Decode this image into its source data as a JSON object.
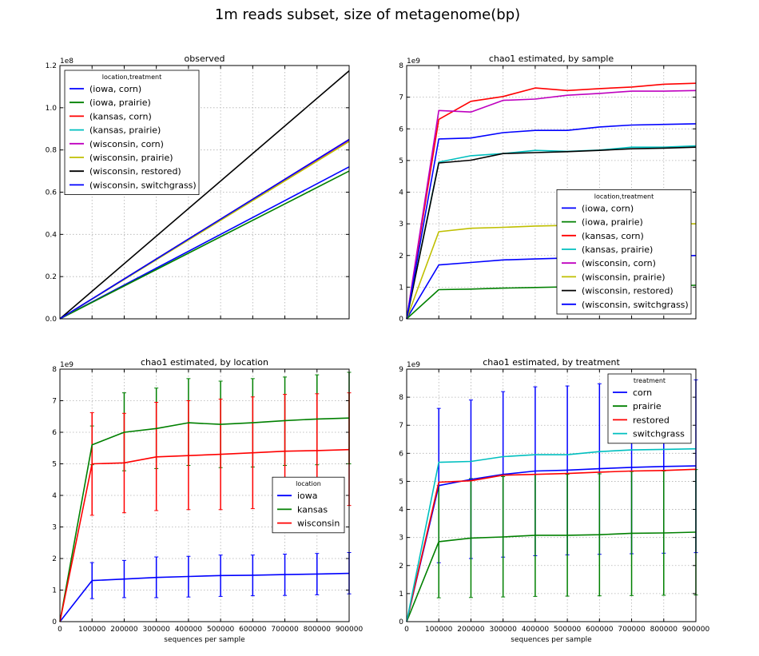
{
  "figure": {
    "suptitle": "1m reads subset, size of metagenome(bp)"
  },
  "colors": {
    "blue": "#0000ff",
    "green": "#008000",
    "red": "#ff0000",
    "cyan": "#00bfbf",
    "magenta": "#bf00bf",
    "yellow": "#bfbf00",
    "black": "#000000"
  },
  "chart_data": [
    {
      "id": "observed",
      "type": "line",
      "title": "observed",
      "xlabel": "",
      "ylabel": "",
      "xlim": [
        0,
        900000
      ],
      "ylim": [
        0,
        1.2
      ],
      "multiplier_label": "1e8",
      "xticks": [
        0,
        100000,
        200000,
        300000,
        400000,
        500000,
        600000,
        700000,
        800000,
        900000
      ],
      "xtick_labels": [],
      "yticks": [
        0,
        0.2,
        0.4,
        0.6,
        0.8,
        1.0,
        1.2
      ],
      "ytick_labels": [
        "0.0",
        "0.2",
        "0.4",
        "0.6",
        "0.8",
        "1.0",
        "1.2"
      ],
      "grid": true,
      "legend": {
        "title": "location,treatment",
        "position": "upper-left"
      },
      "x": [
        0,
        900000
      ],
      "series": [
        {
          "name": "(iowa, corn)",
          "color": "#0000ff",
          "values": [
            0,
            0.72
          ]
        },
        {
          "name": "(iowa, prairie)",
          "color": "#008000",
          "values": [
            0,
            0.7
          ]
        },
        {
          "name": "(kansas, corn)",
          "color": "#ff0000",
          "values": [
            0,
            0.85
          ]
        },
        {
          "name": "(kansas, prairie)",
          "color": "#00bfbf",
          "values": [
            0,
            0.845
          ]
        },
        {
          "name": "(wisconsin, corn)",
          "color": "#bf00bf",
          "values": [
            0,
            0.845
          ]
        },
        {
          "name": "(wisconsin, prairie)",
          "color": "#bfbf00",
          "values": [
            0,
            0.84
          ]
        },
        {
          "name": "(wisconsin, restored)",
          "color": "#000000",
          "values": [
            0,
            1.175
          ]
        },
        {
          "name": "(wisconsin, switchgrass)",
          "color": "#0000ff",
          "values": [
            0,
            0.85
          ]
        }
      ]
    },
    {
      "id": "by-sample",
      "type": "line",
      "title": "chao1 estimated, by sample",
      "xlabel": "",
      "ylabel": "",
      "xlim": [
        0,
        900000
      ],
      "ylim": [
        0,
        8
      ],
      "multiplier_label": "1e9",
      "xticks": [
        0,
        100000,
        200000,
        300000,
        400000,
        500000,
        600000,
        700000,
        800000,
        900000
      ],
      "xtick_labels": [],
      "yticks": [
        0,
        1,
        2,
        3,
        4,
        5,
        6,
        7,
        8
      ],
      "ytick_labels": [
        "0",
        "1",
        "2",
        "3",
        "4",
        "5",
        "6",
        "7",
        "8"
      ],
      "grid": true,
      "legend": {
        "title": "location,treatment",
        "position": "lower-right"
      },
      "x": [
        0,
        100000,
        200000,
        300000,
        400000,
        500000,
        600000,
        700000,
        800000,
        900000
      ],
      "series": [
        {
          "name": "(iowa, corn)",
          "color": "#0000ff",
          "values": [
            0,
            1.7,
            1.78,
            1.86,
            1.89,
            1.92,
            1.95,
            1.97,
            1.98,
            2.0
          ]
        },
        {
          "name": "(iowa, prairie)",
          "color": "#008000",
          "values": [
            0,
            0.92,
            0.94,
            0.97,
            0.99,
            1.01,
            1.02,
            1.03,
            1.04,
            1.06
          ]
        },
        {
          "name": "(kansas, corn)",
          "color": "#ff0000",
          "values": [
            0,
            6.3,
            6.87,
            7.02,
            7.29,
            7.21,
            7.27,
            7.32,
            7.41,
            7.44
          ]
        },
        {
          "name": "(kansas, prairie)",
          "color": "#00bfbf",
          "values": [
            0,
            4.95,
            5.15,
            5.22,
            5.32,
            5.29,
            5.33,
            5.42,
            5.42,
            5.46
          ]
        },
        {
          "name": "(wisconsin, corn)",
          "color": "#bf00bf",
          "values": [
            0,
            6.58,
            6.53,
            6.9,
            6.94,
            7.06,
            7.12,
            7.19,
            7.19,
            7.21
          ]
        },
        {
          "name": "(wisconsin, prairie)",
          "color": "#bfbf00",
          "values": [
            0,
            2.75,
            2.86,
            2.89,
            2.93,
            2.95,
            2.97,
            2.99,
            3.0,
            3.0
          ]
        },
        {
          "name": "(wisconsin, restored)",
          "color": "#000000",
          "values": [
            0,
            4.92,
            5.01,
            5.22,
            5.25,
            5.28,
            5.32,
            5.37,
            5.39,
            5.42
          ]
        },
        {
          "name": "(wisconsin, switchgrass)",
          "color": "#0000ff",
          "values": [
            0,
            5.68,
            5.71,
            5.88,
            5.95,
            5.95,
            6.06,
            6.12,
            6.14,
            6.16
          ]
        }
      ]
    },
    {
      "id": "by-location",
      "type": "line",
      "title": "chao1 estimated, by location",
      "xlabel": "sequences per sample",
      "ylabel": "",
      "xlim": [
        0,
        900000
      ],
      "ylim": [
        0,
        8
      ],
      "multiplier_label": "1e9",
      "xticks": [
        0,
        100000,
        200000,
        300000,
        400000,
        500000,
        600000,
        700000,
        800000,
        900000
      ],
      "xtick_labels": [
        "0",
        "100000",
        "200000",
        "300000",
        "400000",
        "500000",
        "600000",
        "700000",
        "800000",
        "900000"
      ],
      "yticks": [
        0,
        1,
        2,
        3,
        4,
        5,
        6,
        7,
        8
      ],
      "ytick_labels": [
        "0",
        "1",
        "2",
        "3",
        "4",
        "5",
        "6",
        "7",
        "8"
      ],
      "grid": true,
      "legend": {
        "title": "location",
        "position": "center-right"
      },
      "x": [
        0,
        100000,
        200000,
        300000,
        400000,
        500000,
        600000,
        700000,
        800000,
        900000
      ],
      "series": [
        {
          "name": "iowa",
          "color": "#0000ff",
          "values": [
            0,
            1.3,
            1.35,
            1.4,
            1.43,
            1.46,
            1.47,
            1.49,
            1.51,
            1.53
          ],
          "err_low": [
            0,
            0.73,
            0.76,
            0.76,
            0.78,
            0.8,
            0.82,
            0.83,
            0.85,
            0.88
          ],
          "err_high": [
            0,
            1.87,
            1.94,
            2.05,
            2.07,
            2.11,
            2.11,
            2.14,
            2.16,
            2.19
          ]
        },
        {
          "name": "kansas",
          "color": "#008000",
          "values": [
            0,
            5.6,
            6.0,
            6.12,
            6.3,
            6.25,
            6.3,
            6.37,
            6.42,
            6.45
          ],
          "err_low": [
            0,
            4.97,
            4.78,
            4.85,
            4.95,
            4.88,
            4.9,
            4.95,
            4.97,
            5.0
          ],
          "err_high": [
            0,
            6.2,
            7.25,
            7.4,
            7.7,
            7.62,
            7.7,
            7.75,
            7.82,
            7.9
          ]
        },
        {
          "name": "wisconsin",
          "color": "#ff0000",
          "values": [
            0,
            5.0,
            5.03,
            5.22,
            5.26,
            5.3,
            5.35,
            5.4,
            5.42,
            5.45
          ],
          "err_low": [
            0,
            3.37,
            3.45,
            3.52,
            3.55,
            3.55,
            3.58,
            3.64,
            3.66,
            3.68
          ],
          "err_high": [
            0,
            6.62,
            6.6,
            6.95,
            7.0,
            7.05,
            7.12,
            7.2,
            7.22,
            7.25
          ]
        }
      ]
    },
    {
      "id": "by-treatment",
      "type": "line",
      "title": "chao1 estimated, by treatment",
      "xlabel": "sequences per sample",
      "ylabel": "",
      "xlim": [
        0,
        900000
      ],
      "ylim": [
        0,
        9
      ],
      "multiplier_label": "1e9",
      "xticks": [
        0,
        100000,
        200000,
        300000,
        400000,
        500000,
        600000,
        700000,
        800000,
        900000
      ],
      "xtick_labels": [
        "0",
        "100000",
        "200000",
        "300000",
        "400000",
        "500000",
        "600000",
        "700000",
        "800000",
        "900000"
      ],
      "yticks": [
        0,
        1,
        2,
        3,
        4,
        5,
        6,
        7,
        8,
        9
      ],
      "ytick_labels": [
        "0",
        "1",
        "2",
        "3",
        "4",
        "5",
        "6",
        "7",
        "8",
        "9"
      ],
      "grid": true,
      "legend": {
        "title": "treatment",
        "position": "upper-right"
      },
      "x": [
        0,
        100000,
        200000,
        300000,
        400000,
        500000,
        600000,
        700000,
        800000,
        900000
      ],
      "series": [
        {
          "name": "corn",
          "color": "#0000ff",
          "values": [
            0,
            4.85,
            5.07,
            5.25,
            5.37,
            5.4,
            5.45,
            5.5,
            5.53,
            5.55
          ],
          "err_low": [
            0,
            2.1,
            2.25,
            2.3,
            2.35,
            2.38,
            2.4,
            2.42,
            2.44,
            2.46
          ],
          "err_high": [
            0,
            7.6,
            7.9,
            8.2,
            8.37,
            8.4,
            8.48,
            8.55,
            8.6,
            8.62
          ]
        },
        {
          "name": "prairie",
          "color": "#008000",
          "values": [
            0,
            2.85,
            2.98,
            3.02,
            3.08,
            3.08,
            3.1,
            3.15,
            3.16,
            3.19
          ],
          "err_low": [
            0,
            0.85,
            0.86,
            0.88,
            0.9,
            0.91,
            0.92,
            0.93,
            0.94,
            0.95
          ],
          "err_high": [
            0,
            4.85,
            5.1,
            5.17,
            5.25,
            5.25,
            5.27,
            5.35,
            5.37,
            5.42
          ]
        },
        {
          "name": "restored",
          "color": "#ff0000",
          "values": [
            0,
            4.97,
            5.02,
            5.22,
            5.25,
            5.28,
            5.33,
            5.37,
            5.39,
            5.43
          ]
        },
        {
          "name": "switchgrass",
          "color": "#00bfbf",
          "values": [
            0,
            5.68,
            5.71,
            5.88,
            5.95,
            5.95,
            6.06,
            6.12,
            6.14,
            6.16
          ]
        }
      ]
    }
  ]
}
